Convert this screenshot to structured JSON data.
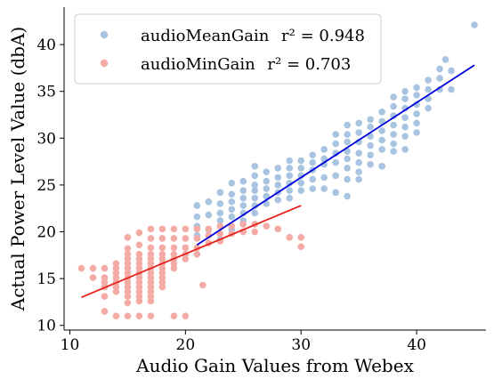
{
  "chart_data": {
    "type": "scatter",
    "xlabel": "Audio Gain Values from Webex",
    "ylabel": "Actual Power Level Value (dbA)",
    "xlim": [
      9.5,
      46
    ],
    "ylim": [
      9.5,
      44
    ],
    "xticks": [
      10,
      20,
      30,
      40
    ],
    "yticks": [
      10,
      15,
      20,
      25,
      30,
      35,
      40
    ],
    "grid": false,
    "legend_position": "top-left",
    "series": [
      {
        "name": "audioMeanGain",
        "r2_label": "r² = 0.948",
        "color": "#a8c4e0",
        "points": [
          [
            21,
            22.8
          ],
          [
            21,
            21.6
          ],
          [
            21,
            20.6
          ],
          [
            21,
            19.6
          ],
          [
            22,
            23.2
          ],
          [
            22,
            21.8
          ],
          [
            22,
            20.2
          ],
          [
            23,
            24.2
          ],
          [
            23,
            23.0
          ],
          [
            23,
            22.0
          ],
          [
            23,
            21.2
          ],
          [
            23,
            19.2
          ],
          [
            24,
            25.2
          ],
          [
            24,
            24.0
          ],
          [
            24,
            23.2
          ],
          [
            24,
            22.4
          ],
          [
            24,
            21.6
          ],
          [
            24,
            20.2
          ],
          [
            25,
            25.4
          ],
          [
            25,
            24.4
          ],
          [
            25,
            23.6
          ],
          [
            25,
            22.8
          ],
          [
            25,
            22.0
          ],
          [
            25,
            21.2
          ],
          [
            26,
            27.0
          ],
          [
            26,
            26.0
          ],
          [
            26,
            25.0
          ],
          [
            26,
            24.4
          ],
          [
            26,
            23.6
          ],
          [
            26,
            22.8
          ],
          [
            26,
            22.0
          ],
          [
            27,
            26.4
          ],
          [
            27,
            25.4
          ],
          [
            27,
            24.6
          ],
          [
            27,
            23.8
          ],
          [
            27,
            23.0
          ],
          [
            28,
            26.8
          ],
          [
            28,
            25.8
          ],
          [
            28,
            25.0
          ],
          [
            28,
            24.2
          ],
          [
            28,
            23.4
          ],
          [
            29,
            27.6
          ],
          [
            29,
            26.8
          ],
          [
            29,
            26.0
          ],
          [
            29,
            25.2
          ],
          [
            29,
            24.4
          ],
          [
            29,
            23.6
          ],
          [
            30,
            27.6
          ],
          [
            30,
            26.8
          ],
          [
            30,
            26.0
          ],
          [
            30,
            25.2
          ],
          [
            30,
            24.4
          ],
          [
            31,
            28.2
          ],
          [
            31,
            27.4
          ],
          [
            31,
            26.6
          ],
          [
            31,
            25.6
          ],
          [
            31,
            24.6
          ],
          [
            32,
            28.8
          ],
          [
            32,
            27.8
          ],
          [
            32,
            27.2
          ],
          [
            32,
            25.8
          ],
          [
            32,
            24.6
          ],
          [
            33,
            30.4
          ],
          [
            33,
            29.4
          ],
          [
            33,
            28.4
          ],
          [
            33,
            27.4
          ],
          [
            33,
            26.0
          ],
          [
            33,
            24.2
          ],
          [
            34,
            31.4
          ],
          [
            34,
            30.4
          ],
          [
            34,
            29.6
          ],
          [
            34,
            28.6
          ],
          [
            34,
            27.8
          ],
          [
            34,
            26.8
          ],
          [
            34,
            25.6
          ],
          [
            34,
            23.8
          ],
          [
            35,
            31.6
          ],
          [
            35,
            30.6
          ],
          [
            35,
            29.6
          ],
          [
            35,
            28.4
          ],
          [
            35,
            27.4
          ],
          [
            35,
            26.4
          ],
          [
            35,
            25.6
          ],
          [
            36,
            32.0
          ],
          [
            36,
            31.2
          ],
          [
            36,
            30.2
          ],
          [
            36,
            29.2
          ],
          [
            36,
            28.2
          ],
          [
            36,
            27.2
          ],
          [
            37,
            32.8
          ],
          [
            37,
            31.8
          ],
          [
            37,
            30.8
          ],
          [
            37,
            29.8
          ],
          [
            37,
            28.8
          ],
          [
            37,
            27.0
          ],
          [
            38,
            34.4
          ],
          [
            38,
            33.4
          ],
          [
            38,
            32.4
          ],
          [
            38,
            31.4
          ],
          [
            38,
            30.4
          ],
          [
            38,
            29.4
          ],
          [
            38,
            28.6
          ],
          [
            39,
            35.0
          ],
          [
            39,
            34.2
          ],
          [
            39,
            33.2
          ],
          [
            39,
            32.2
          ],
          [
            39,
            31.2
          ],
          [
            39,
            30.2
          ],
          [
            39,
            28.8
          ],
          [
            40,
            35.4
          ],
          [
            40,
            34.6
          ],
          [
            40,
            33.6
          ],
          [
            40,
            32.6
          ],
          [
            40,
            31.6
          ],
          [
            40,
            30.6
          ],
          [
            41,
            36.2
          ],
          [
            41,
            35.2
          ],
          [
            41,
            34.2
          ],
          [
            41,
            33.2
          ],
          [
            42,
            37.4
          ],
          [
            42,
            36.4
          ],
          [
            42,
            35.2
          ],
          [
            42.5,
            38.4
          ],
          [
            43,
            37.2
          ],
          [
            43,
            35.2
          ],
          [
            45,
            42.1
          ]
        ],
        "fit": [
          [
            21,
            18.6
          ],
          [
            45,
            37.8
          ]
        ],
        "fit_color": "#0000dd"
      },
      {
        "name": "audioMinGain",
        "r2_label": "r² = 0.703",
        "color": "#f4aba6",
        "points": [
          [
            11,
            16.1
          ],
          [
            12,
            16.1
          ],
          [
            12,
            15.1
          ],
          [
            13,
            16.1
          ],
          [
            13,
            15.1
          ],
          [
            13,
            14.6
          ],
          [
            13,
            14.1
          ],
          [
            13,
            13.1
          ],
          [
            13,
            11.5
          ],
          [
            14,
            16.6
          ],
          [
            14,
            16.1
          ],
          [
            14,
            15.6
          ],
          [
            14,
            15.1
          ],
          [
            14,
            14.6
          ],
          [
            14,
            14.1
          ],
          [
            14,
            13.6
          ],
          [
            14,
            11.0
          ],
          [
            15,
            19.4
          ],
          [
            15,
            18.2
          ],
          [
            15,
            17.6
          ],
          [
            15,
            17.1
          ],
          [
            15,
            16.6
          ],
          [
            15,
            16.1
          ],
          [
            15,
            15.6
          ],
          [
            15,
            15.1
          ],
          [
            15,
            14.6
          ],
          [
            15,
            14.1
          ],
          [
            15,
            13.6
          ],
          [
            15,
            13.1
          ],
          [
            15,
            12.4
          ],
          [
            15,
            11.0
          ],
          [
            16,
            19.9
          ],
          [
            16,
            18.6
          ],
          [
            16,
            17.6
          ],
          [
            16,
            17.1
          ],
          [
            16,
            16.6
          ],
          [
            16,
            16.1
          ],
          [
            16,
            15.6
          ],
          [
            16,
            15.1
          ],
          [
            16,
            14.6
          ],
          [
            16,
            14.1
          ],
          [
            16,
            13.6
          ],
          [
            16,
            13.1
          ],
          [
            16,
            12.6
          ],
          [
            16,
            11.0
          ],
          [
            17,
            20.3
          ],
          [
            17,
            19.3
          ],
          [
            17,
            18.3
          ],
          [
            17,
            17.6
          ],
          [
            17,
            17.1
          ],
          [
            17,
            16.6
          ],
          [
            17,
            16.1
          ],
          [
            17,
            15.6
          ],
          [
            17,
            15.1
          ],
          [
            17,
            14.6
          ],
          [
            17,
            14.1
          ],
          [
            17,
            13.6
          ],
          [
            17,
            13.1
          ],
          [
            17,
            12.6
          ],
          [
            17,
            11.0
          ],
          [
            18,
            20.3
          ],
          [
            18,
            19.3
          ],
          [
            18,
            18.3
          ],
          [
            18,
            17.6
          ],
          [
            18,
            17.1
          ],
          [
            18,
            16.6
          ],
          [
            18,
            16.1
          ],
          [
            18,
            15.6
          ],
          [
            18,
            15.1
          ],
          [
            18,
            14.6
          ],
          [
            18,
            14.1
          ],
          [
            19,
            20.3
          ],
          [
            19,
            19.3
          ],
          [
            19,
            18.3
          ],
          [
            19,
            17.6
          ],
          [
            19,
            17.1
          ],
          [
            19,
            16.6
          ],
          [
            19,
            16.1
          ],
          [
            19,
            11.0
          ],
          [
            20,
            20.3
          ],
          [
            20,
            19.3
          ],
          [
            20,
            18.3
          ],
          [
            20,
            17.6
          ],
          [
            20,
            17.1
          ],
          [
            20,
            11.0
          ],
          [
            21,
            20.3
          ],
          [
            21,
            19.3
          ],
          [
            21,
            18.3
          ],
          [
            21,
            17.6
          ],
          [
            21.5,
            14.3
          ],
          [
            22,
            20.3
          ],
          [
            22,
            19.6
          ],
          [
            22,
            18.8
          ],
          [
            23,
            20.6
          ],
          [
            23,
            19.8
          ],
          [
            23,
            19.0
          ],
          [
            24,
            20.6
          ],
          [
            24,
            19.8
          ],
          [
            25,
            20.8
          ],
          [
            25,
            20.0
          ],
          [
            26,
            20.8
          ],
          [
            26,
            20.0
          ],
          [
            27,
            20.6
          ],
          [
            28,
            20.3
          ],
          [
            29,
            19.4
          ],
          [
            30,
            19.4
          ],
          [
            30,
            18.4
          ]
        ],
        "fit": [
          [
            11,
            13.0
          ],
          [
            30,
            22.8
          ]
        ],
        "fit_color": "#e8221b"
      }
    ]
  }
}
